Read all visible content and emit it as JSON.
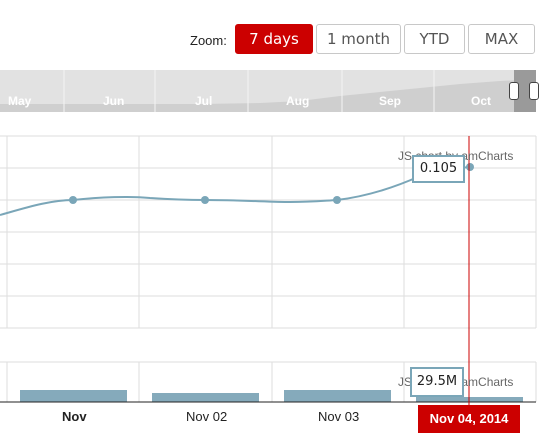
{
  "zoom": {
    "label": "Zoom:",
    "buttons": [
      "7 days",
      "1 month",
      "YTD",
      "MAX"
    ],
    "active": "7 days"
  },
  "navigator": {
    "months": [
      "May",
      "Jun",
      "Jul",
      "Aug",
      "Sep",
      "Oct"
    ]
  },
  "main_panel": {
    "credit": "JS chart by amCharts",
    "balloon": "0.105"
  },
  "volume_panel": {
    "credit": "JS chart by amCharts",
    "balloon": "29.5M"
  },
  "x_axis": {
    "labels": [
      "Nov",
      "Nov 02",
      "Nov 03"
    ],
    "cursor_date": "Nov 04, 2014"
  },
  "colors": {
    "accent": "#cc0000",
    "line": "#7aa6b8",
    "grid": "#dddddd"
  }
}
